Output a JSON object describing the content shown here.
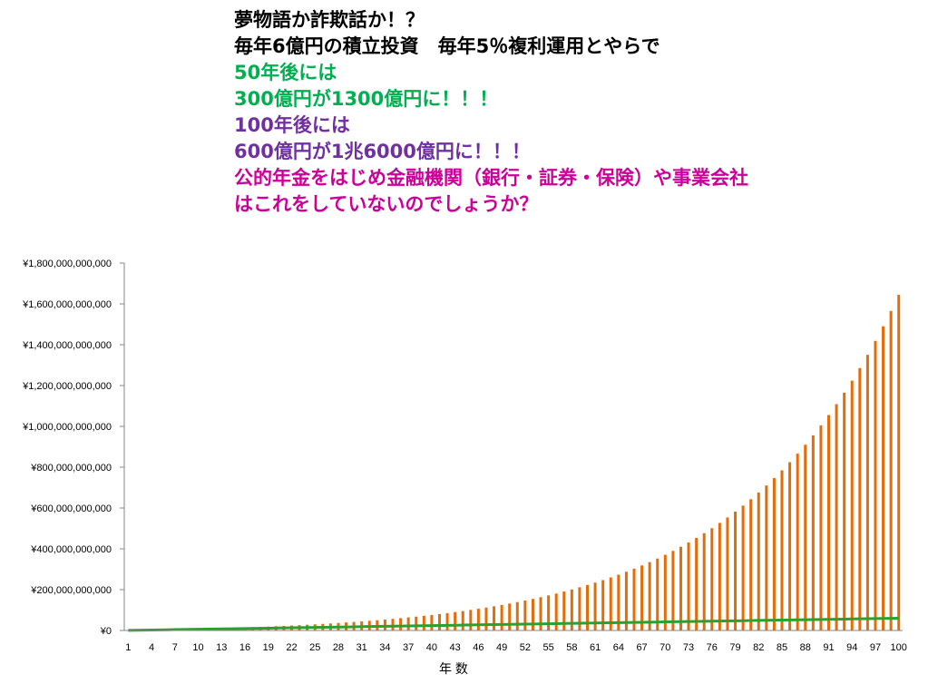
{
  "headline": [
    {
      "text": "夢物語か詐欺話か！？",
      "color": "#000000"
    },
    {
      "text": "毎年6億円の積立投資　毎年5％複利運用とやらで",
      "color": "#000000"
    },
    {
      "text": "50年後には",
      "color": "#00B050"
    },
    {
      "text": "300億円が1300億円に！！！",
      "color": "#00B050"
    },
    {
      "text": "100年後には",
      "color": "#7030A0"
    },
    {
      "text": "600億円が1兆6000億円に！！！",
      "color": "#7030A0"
    },
    {
      "text": "公的年金をはじめ金融機関（銀行・証券・保険）や事業会社",
      "color": "#CC0099"
    },
    {
      "text": "はこれをしていないのでしょうか？",
      "color": "#CC0099"
    }
  ],
  "chart_data": {
    "type": "bar",
    "x_start": 1,
    "x_end": 100,
    "x_tick_labels": [
      "1",
      "4",
      "7",
      "10",
      "13",
      "16",
      "19",
      "22",
      "25",
      "28",
      "31",
      "34",
      "37",
      "40",
      "43",
      "46",
      "49",
      "52",
      "55",
      "58",
      "61",
      "64",
      "67",
      "70",
      "73",
      "76",
      "79",
      "82",
      "85",
      "88",
      "91",
      "94",
      "97",
      "100"
    ],
    "y_tick_labels": [
      "¥0",
      "¥200,000,000,000",
      "¥400,000,000,000",
      "¥600,000,000,000",
      "¥800,000,000,000",
      "¥1,000,000,000,000",
      "¥1,200,000,000,000",
      "¥1,400,000,000,000",
      "¥1,600,000,000,000",
      "¥1,800,000,000,000"
    ],
    "ylim": [
      0,
      1800000000000
    ],
    "y_step": 200000000000,
    "xlabel": "年 数",
    "ylabel": "",
    "grid": false,
    "series": [
      {
        "type": "bar",
        "color": "#E46C0A",
        "rule": "compound: annual contribution with 5% annual return",
        "annual_contribution": 600000000,
        "annual_rate": 0.05
      },
      {
        "type": "line",
        "color": "#2CA02C",
        "rule": "cumulative contribution",
        "annual_contribution": 600000000
      }
    ]
  }
}
